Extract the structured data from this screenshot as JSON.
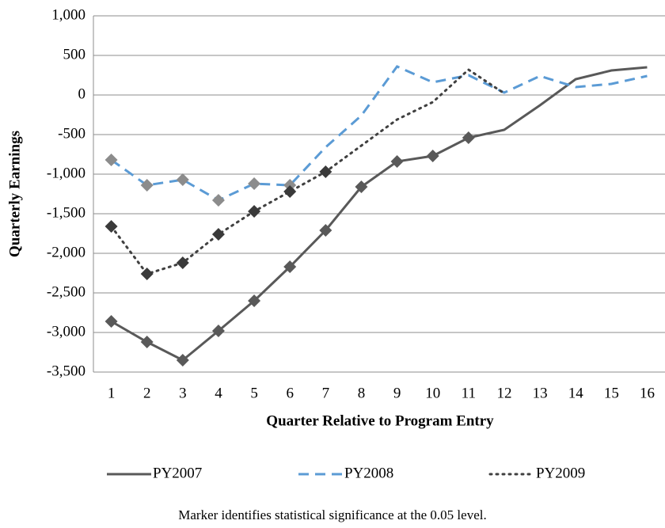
{
  "chart_data": {
    "type": "line",
    "y_label": "Quarterly Earnings",
    "x_label": "Quarter Relative to Program Entry",
    "note": "Marker identifies statistical significance at the 0.05 level.",
    "categories": [
      "1",
      "2",
      "3",
      "4",
      "5",
      "6",
      "7",
      "8",
      "9",
      "10",
      "11",
      "12",
      "13",
      "14",
      "15",
      "16"
    ],
    "ylim": [
      -3500,
      1000
    ],
    "yticks": [
      {
        "value": 1000,
        "label": "1,000"
      },
      500,
      0,
      -500,
      {
        "value": -1000,
        "label": "-1,000"
      },
      {
        "value": -1500,
        "label": "-1,500"
      },
      {
        "value": -2000,
        "label": "-2,000"
      },
      {
        "value": -2500,
        "label": "-2,500"
      },
      {
        "value": -3000,
        "label": "-3,000"
      },
      {
        "value": -3500,
        "label": "-3,500"
      }
    ],
    "grid": true,
    "legend": "bottom",
    "series": [
      {
        "name": "PY2007",
        "color": "#595959",
        "style": "solid",
        "marker_color": "#595959",
        "values": [
          -2860,
          -3120,
          -3350,
          -2980,
          -2600,
          -2170,
          -1710,
          -1160,
          -840,
          -770,
          -540,
          -440,
          -130,
          200,
          310,
          350
        ],
        "significant": [
          true,
          true,
          true,
          true,
          true,
          true,
          true,
          true,
          true,
          true,
          true,
          false,
          false,
          false,
          false,
          false
        ]
      },
      {
        "name": "PY2008",
        "color": "#5b9bd5",
        "style": "dashed",
        "marker_color": "#8c8c8c",
        "values": [
          -820,
          -1140,
          -1070,
          -1330,
          -1120,
          -1140,
          -660,
          -260,
          360,
          160,
          250,
          30,
          240,
          100,
          140,
          240
        ],
        "significant": [
          true,
          true,
          true,
          true,
          true,
          true,
          false,
          false,
          false,
          false,
          false,
          false,
          false,
          false,
          false,
          false
        ]
      },
      {
        "name": "PY2009",
        "color": "#404040",
        "style": "dotted",
        "marker_color": "#3a3a3a",
        "values": [
          -1660,
          -2260,
          -2120,
          -1760,
          -1470,
          -1220,
          -970,
          -640,
          -310,
          -90,
          320,
          20,
          null,
          null,
          null,
          null
        ],
        "significant": [
          true,
          true,
          true,
          true,
          true,
          true,
          true,
          false,
          false,
          false,
          false,
          false,
          false,
          false,
          false,
          false
        ]
      }
    ]
  }
}
